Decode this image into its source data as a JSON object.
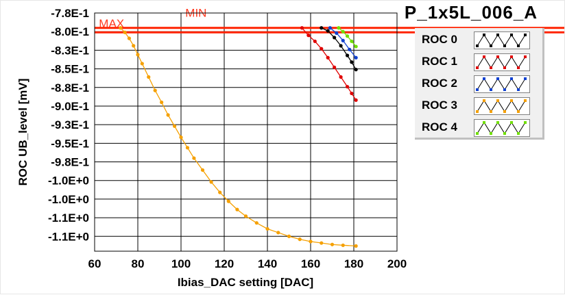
{
  "window": {
    "title": "P_1x5L_006_A"
  },
  "colors": {
    "limit_line": "#ff2200",
    "limit_text": "#ff3a20",
    "plot_bg": "#ffffff",
    "grid": "#000000"
  },
  "chart_data": {
    "type": "scatter",
    "title": "P_1x5L_006_A",
    "xlabel": "Ibias_DAC setting [DAC]",
    "ylabel": "ROC UB_level [mV]",
    "xlim": [
      60,
      200
    ],
    "ylim": [
      -1.1,
      -0.78
    ],
    "grid": true,
    "legend_position": "top-right",
    "x_ticks": [
      {
        "value": 60,
        "label": "60"
      },
      {
        "value": 80,
        "label": "80"
      },
      {
        "value": 100,
        "label": "100"
      },
      {
        "value": 120,
        "label": "120"
      },
      {
        "value": 140,
        "label": "140"
      },
      {
        "value": 160,
        "label": "160"
      },
      {
        "value": 180,
        "label": "180"
      },
      {
        "value": 200,
        "label": "200"
      }
    ],
    "y_ticks": [
      {
        "value": -0.78,
        "label": "-7.8E-1"
      },
      {
        "value": -0.805,
        "label": "-8.0E-1"
      },
      {
        "value": -0.83,
        "label": "-8.3E-1"
      },
      {
        "value": -0.855,
        "label": "-8.5E-1"
      },
      {
        "value": -0.88,
        "label": "-8.8E-1"
      },
      {
        "value": -0.905,
        "label": "-9.0E-1"
      },
      {
        "value": -0.93,
        "label": "-9.3E-1"
      },
      {
        "value": -0.955,
        "label": "-9.5E-1"
      },
      {
        "value": -0.98,
        "label": "-9.8E-1"
      },
      {
        "value": -1.005,
        "label": "-1.0E+0"
      },
      {
        "value": -1.03,
        "label": "-1.0E+0"
      },
      {
        "value": -1.055,
        "label": "-1.1E+0"
      },
      {
        "value": -1.08,
        "label": "-1.1E+0"
      }
    ],
    "limits": [
      {
        "label": "MAX",
        "value": -0.8,
        "label_x": 62
      },
      {
        "label": "MIN",
        "value": -0.806,
        "label_x": 102
      }
    ],
    "series": [
      {
        "name": "ROC 0",
        "color": "#000000",
        "x": [
          165,
          168,
          171,
          174,
          177,
          179,
          181
        ],
        "y": [
          -0.8,
          -0.804,
          -0.813,
          -0.824,
          -0.837,
          -0.846,
          -0.856
        ]
      },
      {
        "name": "ROC 1",
        "color": "#e00000",
        "x": [
          156,
          159,
          162,
          165,
          168,
          171,
          174,
          177,
          179,
          181
        ],
        "y": [
          -0.8,
          -0.81,
          -0.818,
          -0.828,
          -0.84,
          -0.853,
          -0.866,
          -0.879,
          -0.888,
          -0.897
        ]
      },
      {
        "name": "ROC 2",
        "color": "#1040d0",
        "x": [
          169,
          172,
          175,
          178,
          181
        ],
        "y": [
          -0.8,
          -0.807,
          -0.817,
          -0.829,
          -0.84
        ]
      },
      {
        "name": "ROC 3",
        "color": "#f5a000",
        "x": [
          72,
          74,
          76,
          78,
          80,
          82,
          85,
          88,
          91,
          94,
          97,
          100,
          103,
          106,
          110,
          114,
          118,
          122,
          126,
          130,
          135,
          140,
          145,
          150,
          155,
          160,
          165,
          170,
          175,
          181
        ],
        "y": [
          -0.8,
          -0.806,
          -0.814,
          -0.824,
          -0.836,
          -0.848,
          -0.866,
          -0.884,
          -0.9,
          -0.917,
          -0.932,
          -0.947,
          -0.961,
          -0.975,
          -0.991,
          -1.007,
          -1.021,
          -1.033,
          -1.044,
          -1.053,
          -1.062,
          -1.07,
          -1.075,
          -1.08,
          -1.084,
          -1.087,
          -1.089,
          -1.091,
          -1.092,
          -1.093
        ]
      },
      {
        "name": "ROC 4",
        "color": "#70e000",
        "x": [
          173,
          175,
          177,
          179,
          181
        ],
        "y": [
          -0.8,
          -0.805,
          -0.811,
          -0.818,
          -0.825
        ]
      }
    ]
  }
}
